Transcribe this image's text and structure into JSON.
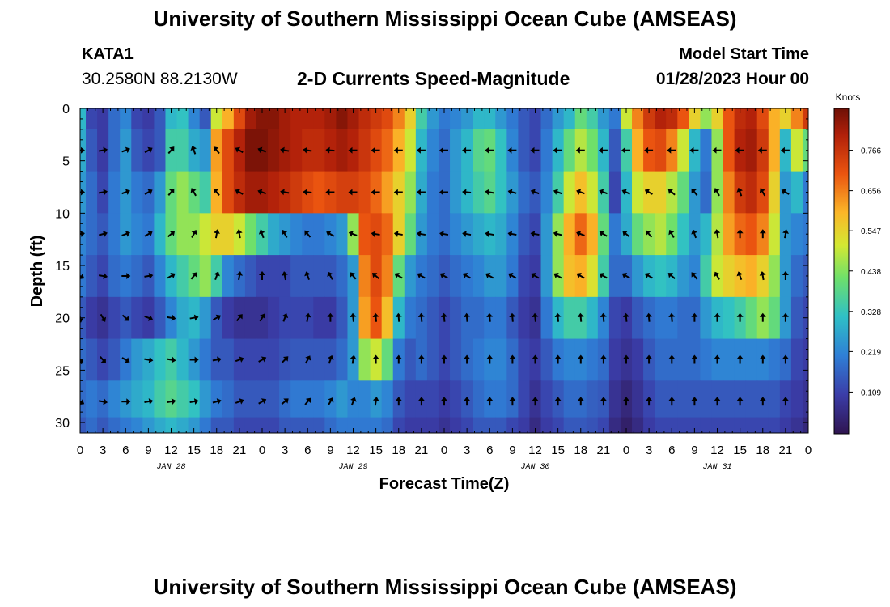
{
  "header": {
    "title": "University of Southern Mississippi Ocean Cube (AMSEAS)",
    "station": "KATA1",
    "coords": "30.2580N  88.2130W",
    "subtitle": "2-D Currents Speed-Magnitude",
    "model_label": "Model Start Time",
    "model_time": "01/28/2023 Hour 00"
  },
  "footer": {
    "title": "University of Southern Mississippi Ocean Cube (AMSEAS)"
  },
  "chart_data": {
    "type": "heatmap",
    "title": "2-D Currents Speed-Magnitude",
    "xlabel": "Forecast Time(Z)",
    "ylabel": "Depth (ft)",
    "x_ticks": [
      "0",
      "3",
      "6",
      "9",
      "12",
      "15",
      "18",
      "21",
      "0",
      "3",
      "6",
      "9",
      "12",
      "15",
      "18",
      "21",
      "0",
      "3",
      "6",
      "9",
      "12",
      "15",
      "18",
      "21",
      "0",
      "3",
      "6",
      "9",
      "12",
      "15",
      "18",
      "21",
      "0"
    ],
    "day_labels": [
      "JAN 28",
      "JAN 29",
      "JAN 30",
      "JAN 31"
    ],
    "xlim_hours": [
      0,
      96
    ],
    "y_ticks": [
      "0",
      "5",
      "10",
      "15",
      "20",
      "25",
      "30"
    ],
    "ylim": [
      0,
      31
    ],
    "colorbar": {
      "unit": "Knots",
      "ticks": [
        "0.766",
        "0.656",
        "0.547",
        "0.438",
        "0.328",
        "0.219",
        "0.109"
      ],
      "range": [
        0,
        0.875
      ]
    },
    "grid_hours": [
      0,
      1.5,
      3,
      4.5,
      6,
      7.5,
      9,
      10.5,
      12,
      13.5,
      15,
      16.5,
      18,
      19.5,
      21,
      22.5,
      24,
      25.5,
      27,
      28.5,
      30,
      31.5,
      33,
      34.5,
      36,
      37.5,
      39,
      40.5,
      42,
      43.5,
      45,
      46.5,
      48,
      49.5,
      51,
      52.5,
      54,
      55.5,
      57,
      58.5,
      60,
      61.5,
      63,
      64.5,
      66,
      67.5,
      69,
      70.5,
      72,
      73.5,
      75,
      76.5,
      78,
      79.5,
      81,
      82.5,
      84,
      85.5,
      87,
      88.5,
      90,
      91.5,
      93,
      94.5,
      96
    ],
    "grid_depths_ft": [
      0,
      4,
      8,
      12,
      16,
      20,
      24,
      28,
      31
    ],
    "speed_knots": [
      [
        0.3,
        0.12,
        0.1,
        0.18,
        0.22,
        0.12,
        0.1,
        0.15,
        0.3,
        0.32,
        0.22,
        0.15,
        0.5,
        0.6,
        0.72,
        0.82,
        0.85,
        0.85,
        0.82,
        0.8,
        0.8,
        0.8,
        0.82,
        0.85,
        0.82,
        0.78,
        0.75,
        0.72,
        0.65,
        0.55,
        0.35,
        0.25,
        0.2,
        0.22,
        0.25,
        0.3,
        0.3,
        0.25,
        0.2,
        0.15,
        0.12,
        0.18,
        0.25,
        0.3,
        0.4,
        0.35,
        0.25,
        0.2,
        0.5,
        0.65,
        0.75,
        0.8,
        0.78,
        0.7,
        0.55,
        0.45,
        0.55,
        0.7,
        0.78,
        0.8,
        0.72,
        0.6,
        0.55,
        0.65,
        0.75
      ],
      [
        0.28,
        0.15,
        0.1,
        0.18,
        0.25,
        0.15,
        0.12,
        0.15,
        0.35,
        0.35,
        0.28,
        0.25,
        0.62,
        0.72,
        0.8,
        0.86,
        0.86,
        0.84,
        0.82,
        0.8,
        0.78,
        0.78,
        0.8,
        0.82,
        0.8,
        0.76,
        0.72,
        0.68,
        0.6,
        0.5,
        0.3,
        0.22,
        0.18,
        0.25,
        0.3,
        0.38,
        0.4,
        0.32,
        0.22,
        0.15,
        0.12,
        0.2,
        0.3,
        0.4,
        0.48,
        0.42,
        0.3,
        0.15,
        0.35,
        0.6,
        0.7,
        0.72,
        0.65,
        0.5,
        0.3,
        0.2,
        0.45,
        0.7,
        0.8,
        0.82,
        0.75,
        0.6,
        0.3,
        0.5,
        0.4
      ],
      [
        0.25,
        0.18,
        0.12,
        0.2,
        0.25,
        0.2,
        0.18,
        0.25,
        0.4,
        0.45,
        0.4,
        0.35,
        0.6,
        0.72,
        0.78,
        0.82,
        0.82,
        0.8,
        0.78,
        0.75,
        0.72,
        0.7,
        0.72,
        0.74,
        0.74,
        0.72,
        0.68,
        0.62,
        0.55,
        0.45,
        0.28,
        0.2,
        0.18,
        0.25,
        0.3,
        0.35,
        0.38,
        0.32,
        0.25,
        0.18,
        0.15,
        0.22,
        0.35,
        0.5,
        0.58,
        0.5,
        0.35,
        0.12,
        0.3,
        0.5,
        0.55,
        0.55,
        0.48,
        0.4,
        0.25,
        0.18,
        0.45,
        0.65,
        0.75,
        0.78,
        0.72,
        0.55,
        0.25,
        0.3,
        0.2
      ],
      [
        0.22,
        0.18,
        0.15,
        0.2,
        0.25,
        0.22,
        0.2,
        0.3,
        0.4,
        0.45,
        0.45,
        0.5,
        0.55,
        0.55,
        0.5,
        0.42,
        0.35,
        0.28,
        0.25,
        0.22,
        0.2,
        0.2,
        0.22,
        0.25,
        0.45,
        0.7,
        0.72,
        0.68,
        0.55,
        0.4,
        0.25,
        0.2,
        0.18,
        0.22,
        0.25,
        0.28,
        0.3,
        0.28,
        0.22,
        0.15,
        0.12,
        0.25,
        0.45,
        0.6,
        0.68,
        0.6,
        0.4,
        0.2,
        0.28,
        0.4,
        0.45,
        0.48,
        0.42,
        0.32,
        0.25,
        0.3,
        0.48,
        0.62,
        0.68,
        0.7,
        0.65,
        0.5,
        0.25,
        0.22,
        0.2
      ],
      [
        0.2,
        0.15,
        0.12,
        0.18,
        0.2,
        0.18,
        0.15,
        0.22,
        0.3,
        0.35,
        0.4,
        0.45,
        0.35,
        0.22,
        0.18,
        0.15,
        0.12,
        0.12,
        0.12,
        0.15,
        0.15,
        0.15,
        0.15,
        0.18,
        0.25,
        0.65,
        0.72,
        0.65,
        0.4,
        0.25,
        0.2,
        0.18,
        0.15,
        0.18,
        0.2,
        0.22,
        0.25,
        0.25,
        0.2,
        0.12,
        0.1,
        0.25,
        0.45,
        0.58,
        0.6,
        0.52,
        0.35,
        0.18,
        0.18,
        0.25,
        0.3,
        0.32,
        0.3,
        0.25,
        0.22,
        0.35,
        0.5,
        0.55,
        0.58,
        0.6,
        0.55,
        0.45,
        0.25,
        0.18,
        0.15
      ],
      [
        0.15,
        0.1,
        0.08,
        0.12,
        0.15,
        0.12,
        0.1,
        0.15,
        0.22,
        0.28,
        0.3,
        0.25,
        0.15,
        0.1,
        0.08,
        0.08,
        0.08,
        0.1,
        0.12,
        0.12,
        0.12,
        0.1,
        0.1,
        0.15,
        0.25,
        0.62,
        0.7,
        0.58,
        0.3,
        0.2,
        0.18,
        0.15,
        0.12,
        0.15,
        0.18,
        0.18,
        0.2,
        0.2,
        0.15,
        0.1,
        0.08,
        0.2,
        0.3,
        0.35,
        0.35,
        0.3,
        0.22,
        0.12,
        0.1,
        0.15,
        0.18,
        0.2,
        0.2,
        0.18,
        0.18,
        0.25,
        0.3,
        0.32,
        0.35,
        0.4,
        0.45,
        0.4,
        0.25,
        0.15,
        0.12
      ],
      [
        0.18,
        0.15,
        0.12,
        0.15,
        0.2,
        0.25,
        0.28,
        0.32,
        0.35,
        0.3,
        0.25,
        0.2,
        0.15,
        0.15,
        0.12,
        0.12,
        0.12,
        0.12,
        0.14,
        0.15,
        0.15,
        0.15,
        0.15,
        0.18,
        0.25,
        0.45,
        0.5,
        0.4,
        0.2,
        0.15,
        0.18,
        0.15,
        0.12,
        0.15,
        0.18,
        0.2,
        0.22,
        0.22,
        0.18,
        0.12,
        0.1,
        0.15,
        0.2,
        0.22,
        0.22,
        0.2,
        0.18,
        0.1,
        0.08,
        0.1,
        0.15,
        0.18,
        0.18,
        0.18,
        0.18,
        0.2,
        0.22,
        0.22,
        0.22,
        0.22,
        0.22,
        0.2,
        0.18,
        0.12,
        0.1
      ],
      [
        0.18,
        0.2,
        0.18,
        0.22,
        0.25,
        0.28,
        0.3,
        0.35,
        0.38,
        0.35,
        0.32,
        0.25,
        0.2,
        0.18,
        0.15,
        0.15,
        0.15,
        0.15,
        0.18,
        0.2,
        0.2,
        0.2,
        0.22,
        0.25,
        0.22,
        0.22,
        0.25,
        0.22,
        0.15,
        0.12,
        0.12,
        0.12,
        0.1,
        0.12,
        0.15,
        0.18,
        0.2,
        0.2,
        0.18,
        0.12,
        0.08,
        0.12,
        0.15,
        0.18,
        0.18,
        0.16,
        0.15,
        0.08,
        0.05,
        0.08,
        0.12,
        0.15,
        0.15,
        0.15,
        0.15,
        0.15,
        0.15,
        0.15,
        0.15,
        0.15,
        0.15,
        0.15,
        0.12,
        0.1,
        0.08
      ],
      [
        0.15,
        0.18,
        0.15,
        0.18,
        0.2,
        0.22,
        0.25,
        0.28,
        0.3,
        0.28,
        0.25,
        0.2,
        0.15,
        0.15,
        0.12,
        0.12,
        0.12,
        0.12,
        0.15,
        0.15,
        0.15,
        0.15,
        0.18,
        0.2,
        0.2,
        0.2,
        0.2,
        0.18,
        0.12,
        0.1,
        0.1,
        0.1,
        0.08,
        0.1,
        0.12,
        0.15,
        0.15,
        0.15,
        0.12,
        0.1,
        0.06,
        0.1,
        0.12,
        0.15,
        0.15,
        0.14,
        0.12,
        0.06,
        0.03,
        0.06,
        0.1,
        0.12,
        0.12,
        0.12,
        0.12,
        0.12,
        0.12,
        0.12,
        0.12,
        0.12,
        0.12,
        0.12,
        0.1,
        0.08,
        0.05
      ]
    ],
    "arrow_depths_ft": [
      4,
      8,
      12,
      16,
      20,
      24,
      28
    ],
    "arrow_hours": [
      0,
      3,
      6,
      9,
      12,
      15,
      18,
      21,
      24,
      27,
      30,
      33,
      36,
      39,
      42,
      45,
      48,
      51,
      54,
      57,
      60,
      63,
      66,
      69,
      72,
      75,
      78,
      81,
      84,
      87,
      90,
      93
    ],
    "arrow_direction_deg": [
      [
        90,
        80,
        70,
        60,
        40,
        340,
        320,
        300,
        290,
        280,
        280,
        275,
        270,
        270,
        270,
        270,
        270,
        270,
        270,
        270,
        270,
        270,
        270,
        270,
        270,
        270,
        270,
        270,
        270,
        270,
        270,
        270
      ],
      [
        90,
        80,
        70,
        60,
        40,
        330,
        320,
        300,
        290,
        280,
        275,
        270,
        270,
        270,
        270,
        270,
        270,
        275,
        280,
        285,
        290,
        290,
        290,
        290,
        295,
        300,
        310,
        320,
        330,
        340,
        330,
        300
      ],
      [
        80,
        75,
        70,
        60,
        50,
        30,
        10,
        350,
        340,
        330,
        320,
        300,
        290,
        280,
        280,
        280,
        280,
        280,
        280,
        280,
        280,
        285,
        290,
        300,
        310,
        320,
        330,
        340,
        350,
        0,
        0,
        10
      ],
      [
        120,
        100,
        90,
        80,
        60,
        40,
        20,
        10,
        0,
        350,
        340,
        330,
        320,
        310,
        300,
        300,
        300,
        300,
        300,
        300,
        300,
        300,
        300,
        300,
        300,
        300,
        310,
        320,
        330,
        340,
        350,
        0
      ],
      [
        170,
        150,
        130,
        110,
        100,
        80,
        60,
        40,
        30,
        20,
        10,
        0,
        355,
        355,
        355,
        355,
        355,
        355,
        355,
        355,
        355,
        355,
        355,
        355,
        355,
        355,
        355,
        0,
        0,
        0,
        0,
        0
      ],
      [
        160,
        140,
        120,
        100,
        100,
        90,
        80,
        70,
        60,
        45,
        30,
        20,
        10,
        0,
        0,
        0,
        0,
        0,
        0,
        0,
        0,
        0,
        0,
        0,
        0,
        0,
        0,
        0,
        0,
        0,
        0,
        0
      ],
      [
        120,
        100,
        90,
        80,
        80,
        80,
        75,
        70,
        60,
        50,
        40,
        30,
        20,
        10,
        0,
        0,
        0,
        0,
        0,
        0,
        0,
        0,
        0,
        0,
        0,
        0,
        0,
        0,
        0,
        0,
        0,
        0
      ]
    ]
  }
}
